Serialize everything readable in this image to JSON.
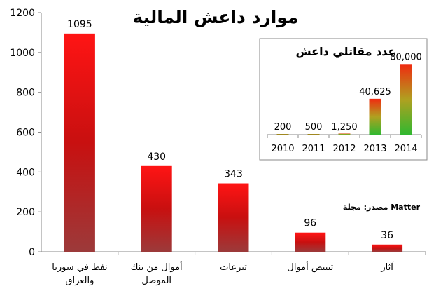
{
  "chart_data": [
    {
      "type": "bar",
      "title": "موارد داعش المالية",
      "categories": [
        [
          "نفط في سوريا",
          "والعراق"
        ],
        [
          "أموال من بنك",
          "الموصل"
        ],
        [
          "تبرعات"
        ],
        [
          "تبييض أموال"
        ],
        [
          "آثار"
        ]
      ],
      "values": [
        1095,
        430,
        343,
        96,
        36
      ],
      "value_labels": [
        "1095",
        "430",
        "343",
        "96",
        "36"
      ],
      "y_ticks": [
        "0",
        "200",
        "400",
        "600",
        "800",
        "1000",
        "1200"
      ],
      "ylim": [
        0,
        1200
      ],
      "grid": false,
      "source_note": "مصدر: مجلة Matter",
      "colors": {
        "bar_top": "#ff1414",
        "bar_mid": "#c81010",
        "bar_bottom": "#9c3a3a"
      }
    },
    {
      "type": "bar",
      "title": "عدد مقاتلي داعش",
      "categories": [
        "2010",
        "2011",
        "2012",
        "2013",
        "2014"
      ],
      "values": [
        200,
        500,
        1250,
        40625,
        80000
      ],
      "value_labels": [
        "200",
        "500",
        "1,250",
        "40,625",
        "80,000"
      ],
      "ylim": [
        0,
        85000
      ],
      "grid": false,
      "colors": {
        "bar_top": "#f02a10",
        "bar_mid": "#b0a020",
        "bar_bottom": "#30b830"
      }
    }
  ]
}
